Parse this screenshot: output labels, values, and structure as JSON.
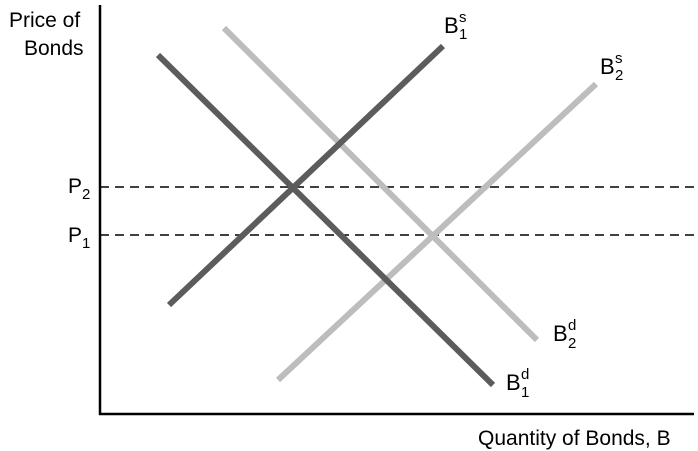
{
  "axes": {
    "y_label_line1": "Price of",
    "y_label_line2": "Bonds",
    "x_label": "Quantity of Bonds, B"
  },
  "price_levels": [
    {
      "letter": "P",
      "sub": "2"
    },
    {
      "letter": "P",
      "sub": "1"
    }
  ],
  "curves": [
    {
      "letter": "B",
      "sup": "s",
      "sub": "1",
      "color": "#5c5c5c"
    },
    {
      "letter": "B",
      "sup": "s",
      "sub": "2",
      "color": "#bdbdbd"
    },
    {
      "letter": "B",
      "sup": "d",
      "sub": "2",
      "color": "#bdbdbd"
    },
    {
      "letter": "B",
      "sup": "d",
      "sub": "1",
      "color": "#5c5c5c"
    }
  ],
  "colors": {
    "axis": "#000000",
    "dashed_line": "#000000",
    "original_curves": "#5c5c5c",
    "shifted_curves": "#bdbdbd"
  }
}
